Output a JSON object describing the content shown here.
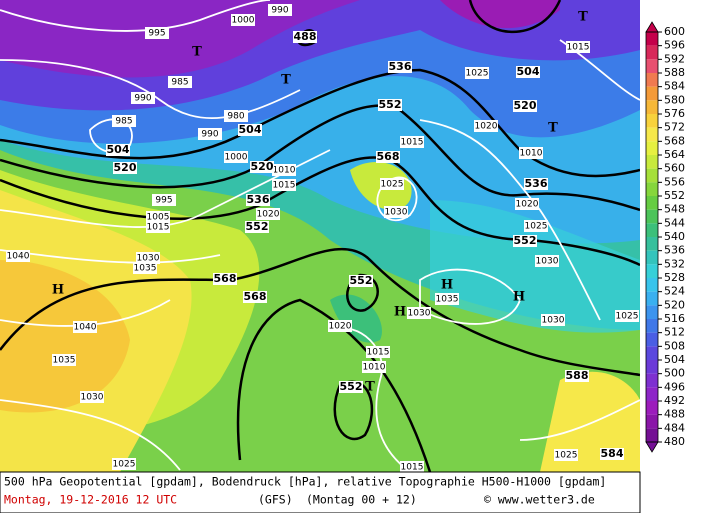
{
  "map": {
    "colorbar": {
      "ticks": [
        600,
        596,
        592,
        588,
        584,
        580,
        576,
        572,
        568,
        564,
        560,
        556,
        552,
        548,
        544,
        540,
        536,
        532,
        528,
        524,
        520,
        516,
        512,
        508,
        504,
        500,
        496,
        492,
        488,
        484,
        480
      ],
      "colors": [
        "#c4004a",
        "#d8285a",
        "#e85070",
        "#f07a50",
        "#f49a38",
        "#f6b838",
        "#f8d23c",
        "#f6e84a",
        "#e6f040",
        "#c8ea3c",
        "#a6e03a",
        "#86d63c",
        "#66cc42",
        "#4cc45a",
        "#3cc07a",
        "#36c09c",
        "#34c4bc",
        "#36d0d8",
        "#38c4ec",
        "#3ab0f0",
        "#3c94ee",
        "#4078e8",
        "#4a5ee4",
        "#5a48de",
        "#6c3ad8",
        "#7e30d0",
        "#8e26c8",
        "#9c1cbc",
        "#8a16a8",
        "#741094"
      ]
    },
    "labels": {
      "geopotential": [
        488,
        504,
        536,
        552,
        504,
        504,
        520,
        520,
        520,
        536,
        536,
        552,
        552,
        568,
        568,
        568,
        552,
        552,
        588,
        584
      ],
      "pressure": [
        995,
        1000,
        990,
        985,
        990,
        985,
        980,
        990,
        1000,
        1010,
        1015,
        995,
        1020,
        1005,
        1015,
        1025,
        1030,
        1015,
        1020,
        1010,
        1020,
        1025,
        1030,
        1035,
        1030,
        1020,
        1015,
        1010,
        1040,
        1030,
        1035,
        1040,
        1035,
        1030,
        1025,
        1015,
        1025,
        1030,
        1025,
        1015,
        1025
      ],
      "centers": [
        "T",
        "T",
        "T",
        "T",
        "T",
        "H",
        "H",
        "H",
        "H"
      ]
    },
    "footer": {
      "description": "500 hPa Geopotential [gpdam], Bodendruck [hPa], relative Topographie H500-H1000 [gpdam]",
      "date": "Montag, 19-12-2016  12 UTC",
      "model": "(GFS)",
      "run": "(Montag 00 + 12)",
      "source": "© www.wetter3.de"
    }
  }
}
